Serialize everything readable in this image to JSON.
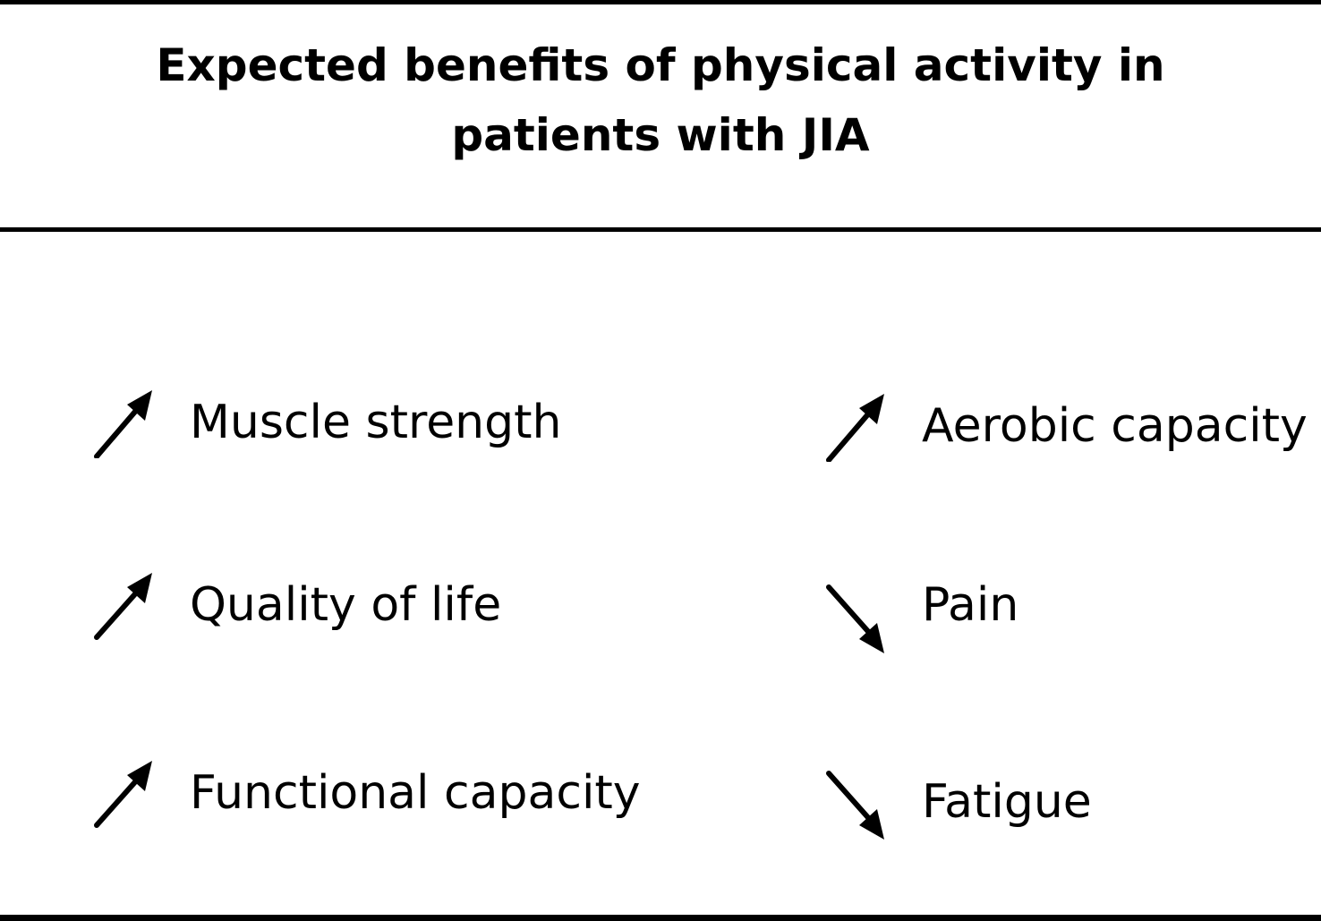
{
  "title": {
    "line1": "Expected benefits of physical activity in",
    "line2": "patients with JIA"
  },
  "items": [
    {
      "label": "Muscle strength",
      "direction": "up",
      "icon": "arrow-up-right-icon"
    },
    {
      "label": "Aerobic capacity",
      "direction": "up",
      "icon": "arrow-up-right-icon"
    },
    {
      "label": "Quality of life",
      "direction": "up",
      "icon": "arrow-up-right-icon"
    },
    {
      "label": "Pain",
      "direction": "down",
      "icon": "arrow-down-right-icon"
    },
    {
      "label": "Functional capacity",
      "direction": "up",
      "icon": "arrow-up-right-icon"
    },
    {
      "label": "Fatigue",
      "direction": "down",
      "icon": "arrow-down-right-icon"
    }
  ],
  "colors": {
    "ink": "#000000",
    "background": "#ffffff"
  }
}
